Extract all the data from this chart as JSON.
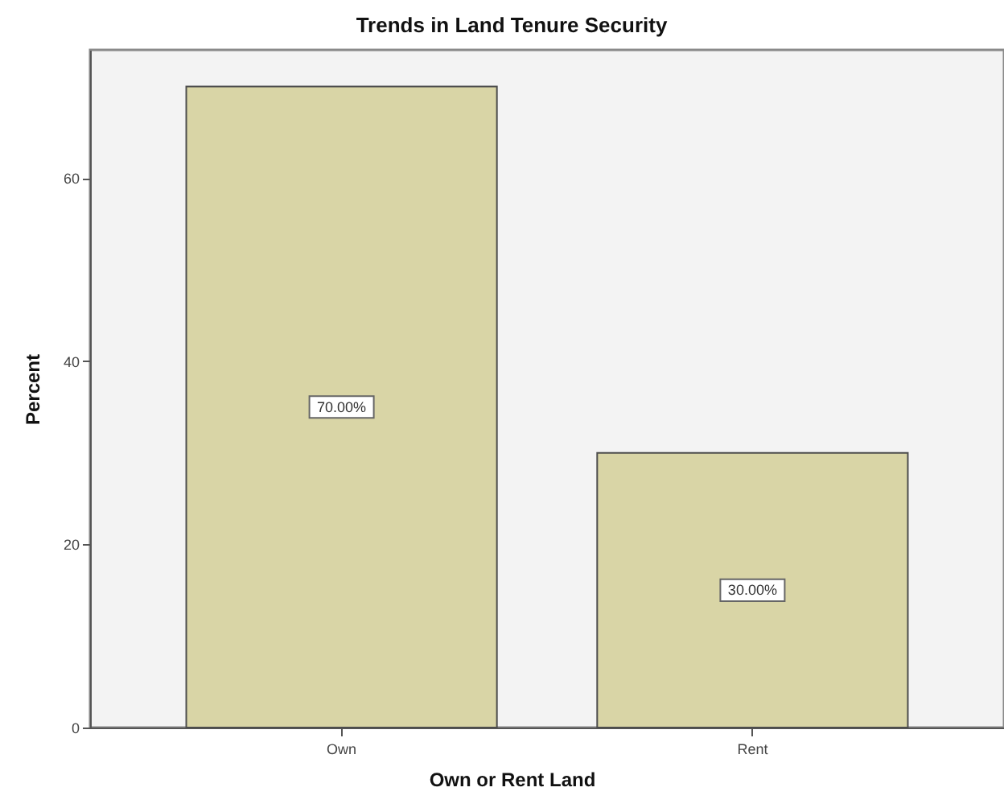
{
  "chart_data": {
    "type": "bar",
    "title": "Trends in Land Tenure Security",
    "xlabel": "Own or Rent Land",
    "ylabel": "Percent",
    "categories": [
      "Own",
      "Rent"
    ],
    "values": [
      70,
      30
    ],
    "color": "#d9d5a6",
    "value_labels": [
      "70.00%",
      "30.00%"
    ],
    "ylim": [
      0,
      74
    ],
    "yticks": [
      0,
      20,
      40,
      60
    ]
  }
}
